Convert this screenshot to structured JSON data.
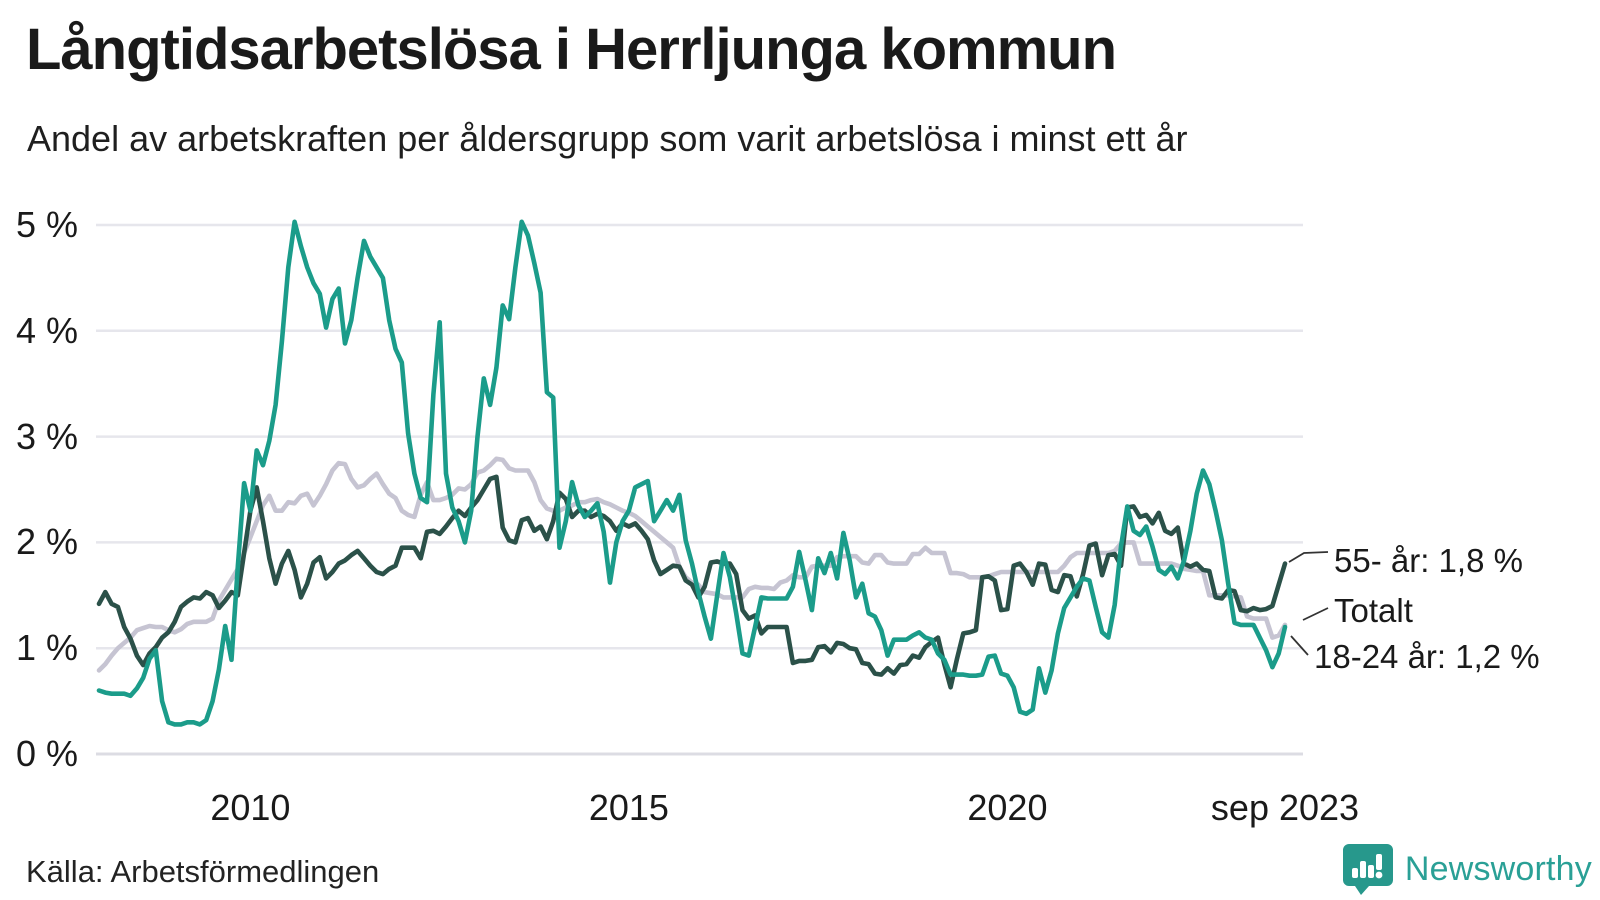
{
  "title": "Långtidsarbetslösa i Herrljunga kommun",
  "subtitle": "Andel av arbetskraften per åldersgrupp som varit arbetslösa i minst ett år",
  "source": {
    "text": "Källa: Arbetsförmedlingen"
  },
  "brand": {
    "name": "Newsworthy",
    "logo_icon": "newsworthy-speech-bubble-bars-icon",
    "color": "#2aa096"
  },
  "chart_data": {
    "type": "line",
    "title": "Långtidsarbetslösa i Herrljunga kommun",
    "ylabel": "Andel av arbetskraften (%)",
    "x_start": "2008-01",
    "x_end": "2023-09",
    "frequency": "monthly",
    "grid": "horizontal",
    "legend_position": "end-of-line-labels",
    "y_axis": {
      "min": 0,
      "max": 5,
      "tick_values": [
        5,
        4,
        3,
        2,
        1,
        0
      ],
      "tick_labels_top_down": [
        "5 %",
        "4 %",
        "3 %",
        "2 %",
        "1 %",
        "0 %"
      ]
    },
    "x_axis": {
      "ticks": [
        {
          "label": "2010",
          "month_index": 24
        },
        {
          "label": "2015",
          "month_index": 84
        },
        {
          "label": "2020",
          "month_index": 144
        },
        {
          "label": "sep 2023",
          "month_index": 188
        }
      ]
    },
    "series": [
      {
        "name": "Totalt",
        "color": "#c6c4d2",
        "end_label": "Totalt",
        "end_value": 1.22,
        "values": [
          0.79,
          0.85,
          0.93,
          1.0,
          1.05,
          1.1,
          1.17,
          1.19,
          1.21,
          1.2,
          1.2,
          1.17,
          1.15,
          1.18,
          1.23,
          1.25,
          1.25,
          1.25,
          1.28,
          1.45,
          1.55,
          1.65,
          1.75,
          1.9,
          2.05,
          2.2,
          2.35,
          2.44,
          2.3,
          2.3,
          2.38,
          2.37,
          2.44,
          2.46,
          2.35,
          2.44,
          2.55,
          2.68,
          2.75,
          2.74,
          2.6,
          2.52,
          2.54,
          2.6,
          2.65,
          2.55,
          2.46,
          2.42,
          2.3,
          2.26,
          2.24,
          2.45,
          2.57,
          2.4,
          2.4,
          2.42,
          2.45,
          2.51,
          2.5,
          2.55,
          2.66,
          2.68,
          2.73,
          2.79,
          2.78,
          2.7,
          2.68,
          2.68,
          2.68,
          2.57,
          2.4,
          2.32,
          2.3,
          2.3,
          2.33,
          2.35,
          2.38,
          2.38,
          2.4,
          2.41,
          2.38,
          2.36,
          2.33,
          2.3,
          2.28,
          2.25,
          2.2,
          2.15,
          2.1,
          2.05,
          2.0,
          1.95,
          1.77,
          1.67,
          1.62,
          1.6,
          1.53,
          1.52,
          1.51,
          1.48,
          1.48,
          1.48,
          1.48,
          1.56,
          1.58,
          1.57,
          1.57,
          1.56,
          1.62,
          1.64,
          1.69,
          1.67,
          1.67,
          1.77,
          1.78,
          1.78,
          1.78,
          1.86,
          1.87,
          1.87,
          1.87,
          1.81,
          1.8,
          1.88,
          1.88,
          1.81,
          1.8,
          1.8,
          1.8,
          1.89,
          1.89,
          1.95,
          1.9,
          1.9,
          1.9,
          1.71,
          1.71,
          1.7,
          1.67,
          1.67,
          1.67,
          1.68,
          1.7,
          1.72,
          1.72,
          1.72,
          1.72,
          1.72,
          1.72,
          1.72,
          1.72,
          1.72,
          1.72,
          1.78,
          1.86,
          1.9,
          1.9,
          1.9,
          1.9,
          1.9,
          1.9,
          1.92,
          1.99,
          2.0,
          2.0,
          1.8,
          1.8,
          1.8,
          1.8,
          1.8,
          1.8,
          1.78,
          1.75,
          1.74,
          1.73,
          1.73,
          1.5,
          1.5,
          1.5,
          1.5,
          1.49,
          1.48,
          1.3,
          1.28,
          1.28,
          1.28,
          1.1,
          1.12,
          1.22
        ]
      },
      {
        "name": "55- år",
        "color": "#2b5149",
        "end_label": "55- år: 1,8 %",
        "end_value": 1.8,
        "values": [
          1.42,
          1.53,
          1.42,
          1.39,
          1.2,
          1.09,
          0.93,
          0.84,
          0.95,
          1.01,
          1.1,
          1.15,
          1.25,
          1.39,
          1.44,
          1.48,
          1.47,
          1.53,
          1.5,
          1.38,
          1.45,
          1.53,
          1.5,
          1.9,
          2.3,
          2.52,
          2.2,
          1.85,
          1.61,
          1.8,
          1.92,
          1.74,
          1.48,
          1.61,
          1.81,
          1.86,
          1.66,
          1.72,
          1.8,
          1.83,
          1.88,
          1.92,
          1.85,
          1.78,
          1.72,
          1.7,
          1.75,
          1.78,
          1.95,
          1.95,
          1.95,
          1.85,
          2.1,
          2.11,
          2.08,
          2.15,
          2.23,
          2.3,
          2.25,
          2.33,
          2.4,
          2.5,
          2.6,
          2.62,
          2.14,
          2.02,
          2.0,
          2.21,
          2.23,
          2.11,
          2.15,
          2.03,
          2.2,
          2.47,
          2.41,
          2.24,
          2.3,
          2.3,
          2.24,
          2.27,
          2.25,
          2.2,
          2.11,
          2.18,
          2.15,
          2.18,
          2.11,
          2.03,
          1.83,
          1.7,
          1.74,
          1.78,
          1.77,
          1.64,
          1.6,
          1.48,
          1.58,
          1.81,
          1.82,
          1.8,
          1.8,
          1.7,
          1.36,
          1.28,
          1.31,
          1.14,
          1.2,
          1.2,
          1.2,
          1.2,
          0.86,
          0.88,
          0.88,
          0.89,
          1.01,
          1.02,
          0.96,
          1.05,
          1.04,
          1.0,
          0.99,
          0.86,
          0.85,
          0.76,
          0.75,
          0.81,
          0.76,
          0.84,
          0.85,
          0.93,
          0.91,
          1.01,
          1.06,
          1.1,
          0.85,
          0.63,
          0.9,
          1.14,
          1.15,
          1.17,
          1.67,
          1.68,
          1.64,
          1.36,
          1.37,
          1.78,
          1.8,
          1.72,
          1.6,
          1.8,
          1.79,
          1.55,
          1.53,
          1.69,
          1.68,
          1.49,
          1.7,
          1.97,
          1.99,
          1.69,
          1.88,
          1.89,
          1.78,
          2.33,
          2.34,
          2.24,
          2.26,
          2.18,
          2.28,
          2.11,
          2.08,
          2.14,
          1.8,
          1.77,
          1.8,
          1.74,
          1.73,
          1.48,
          1.47,
          1.55,
          1.54,
          1.36,
          1.35,
          1.38,
          1.36,
          1.37,
          1.4,
          1.6,
          1.8
        ]
      },
      {
        "name": "18-24 år",
        "color": "#1b9c8a",
        "end_label": "18-24 år: 1,2 %",
        "end_value": 1.2,
        "values": [
          0.6,
          0.58,
          0.57,
          0.57,
          0.57,
          0.55,
          0.62,
          0.72,
          0.9,
          0.98,
          0.5,
          0.3,
          0.28,
          0.28,
          0.3,
          0.3,
          0.28,
          0.32,
          0.5,
          0.8,
          1.21,
          0.89,
          1.77,
          2.56,
          2.3,
          2.87,
          2.73,
          2.96,
          3.3,
          3.9,
          4.6,
          5.03,
          4.8,
          4.6,
          4.45,
          4.35,
          4.03,
          4.3,
          4.4,
          3.88,
          4.1,
          4.5,
          4.85,
          4.7,
          4.6,
          4.5,
          4.1,
          3.83,
          3.7,
          3.03,
          2.65,
          2.42,
          2.38,
          3.4,
          4.08,
          2.65,
          2.33,
          2.2,
          2.0,
          2.3,
          3.0,
          3.55,
          3.3,
          3.65,
          4.24,
          4.11,
          4.6,
          5.03,
          4.9,
          4.64,
          4.36,
          3.42,
          3.37,
          1.95,
          2.2,
          2.57,
          2.35,
          2.24,
          2.3,
          2.37,
          2.1,
          1.62,
          2.0,
          2.2,
          2.3,
          2.52,
          2.55,
          2.58,
          2.2,
          2.3,
          2.4,
          2.3,
          2.45,
          2.02,
          1.8,
          1.53,
          1.3,
          1.09,
          1.5,
          1.9,
          1.67,
          1.33,
          0.95,
          0.93,
          1.2,
          1.48,
          1.47,
          1.47,
          1.47,
          1.47,
          1.58,
          1.91,
          1.64,
          1.36,
          1.85,
          1.71,
          1.9,
          1.66,
          2.09,
          1.83,
          1.48,
          1.61,
          1.33,
          1.3,
          1.17,
          0.93,
          1.08,
          1.08,
          1.08,
          1.12,
          1.15,
          1.1,
          1.08,
          0.95,
          0.89,
          0.75,
          0.75,
          0.75,
          0.74,
          0.74,
          0.75,
          0.92,
          0.93,
          0.76,
          0.74,
          0.63,
          0.4,
          0.38,
          0.42,
          0.81,
          0.58,
          0.79,
          1.14,
          1.38,
          1.48,
          1.58,
          1.66,
          1.64,
          1.39,
          1.15,
          1.1,
          1.41,
          1.96,
          2.34,
          2.11,
          2.07,
          2.15,
          1.96,
          1.74,
          1.7,
          1.77,
          1.66,
          1.83,
          2.11,
          2.46,
          2.68,
          2.55,
          2.3,
          2.02,
          1.61,
          1.24,
          1.22,
          1.22,
          1.22,
          1.1,
          0.98,
          0.82,
          0.95,
          1.2
        ]
      }
    ]
  }
}
